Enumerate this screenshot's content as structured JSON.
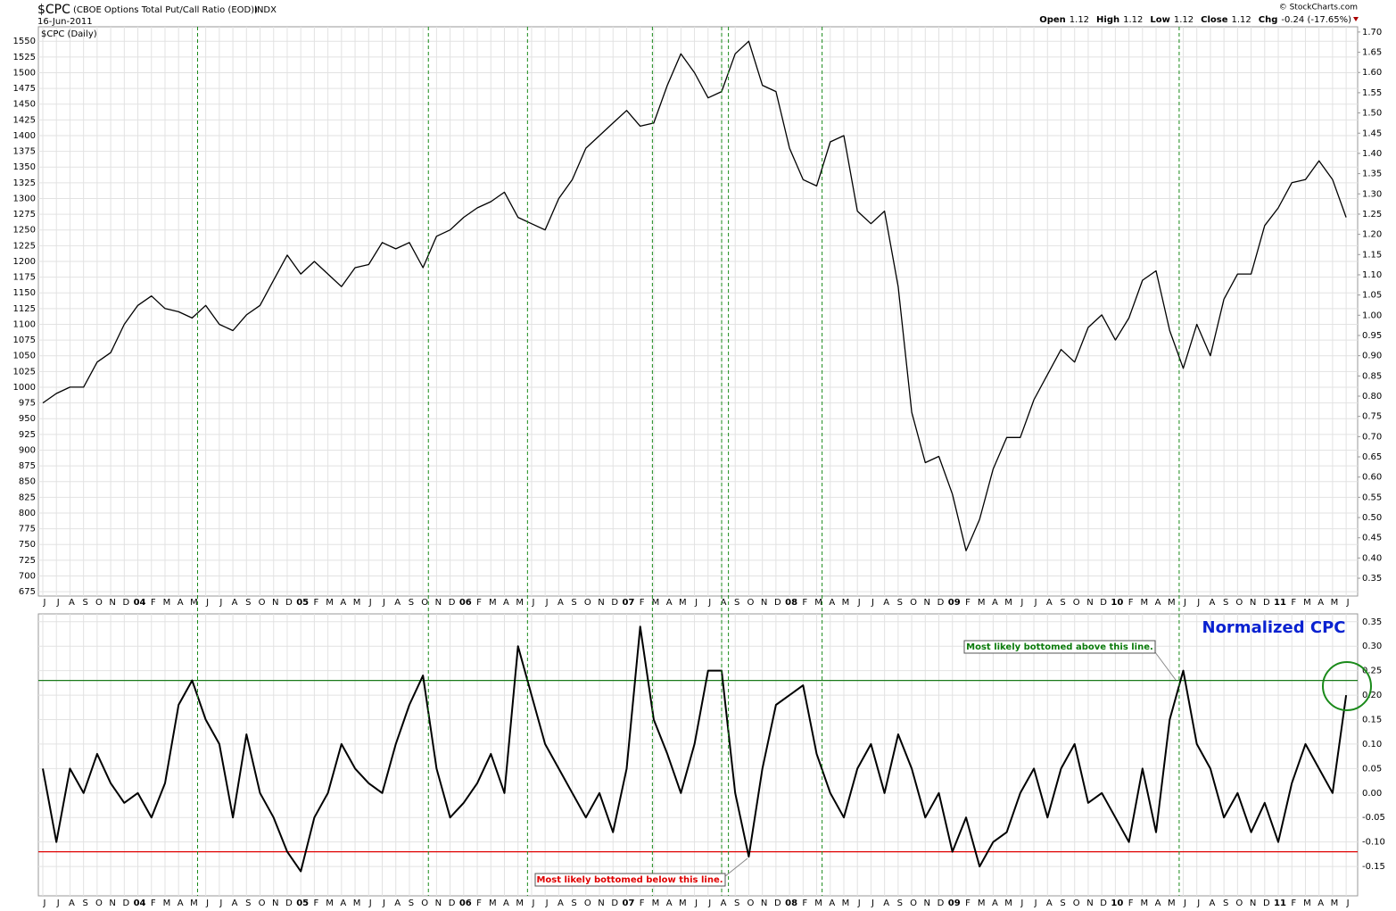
{
  "header": {
    "symbol": "$CPC",
    "description": "(CBOE Options Total Put/Call Ratio (EOD))",
    "exchange": "INDX",
    "date": "16-Jun-2011",
    "copyright": "© StockCharts.com",
    "open_label": "Open",
    "open": "1.12",
    "high_label": "High",
    "high": "1.12",
    "low_label": "Low",
    "low": "1.12",
    "close_label": "Close",
    "close": "1.12",
    "chg_label": "Chg",
    "chg": "-0.24 (-17.65%)"
  },
  "chart_data": [
    {
      "type": "line",
      "label": "$CPC (Daily)",
      "color": "#000000",
      "categories": [
        "J",
        "J",
        "A",
        "S",
        "O",
        "N",
        "D",
        "04",
        "F",
        "M",
        "A",
        "M",
        "J",
        "J",
        "A",
        "S",
        "O",
        "N",
        "D",
        "05",
        "F",
        "M",
        "A",
        "M",
        "J",
        "J",
        "A",
        "S",
        "O",
        "N",
        "D",
        "06",
        "F",
        "M",
        "A",
        "M",
        "J",
        "J",
        "A",
        "S",
        "O",
        "N",
        "D",
        "07",
        "F",
        "M",
        "A",
        "M",
        "J",
        "J",
        "A",
        "S",
        "O",
        "N",
        "D",
        "08",
        "F",
        "M",
        "A",
        "M",
        "J",
        "J",
        "A",
        "S",
        "O",
        "N",
        "D",
        "09",
        "F",
        "M",
        "A",
        "M",
        "J",
        "J",
        "A",
        "S",
        "O",
        "N",
        "D",
        "10",
        "F",
        "M",
        "A",
        "M",
        "J",
        "J",
        "A",
        "S",
        "O",
        "N",
        "D",
        "11",
        "F",
        "M",
        "A",
        "M",
        "J"
      ],
      "values": [
        975,
        990,
        1000,
        1000,
        1040,
        1055,
        1100,
        1130,
        1145,
        1125,
        1120,
        1110,
        1130,
        1100,
        1090,
        1115,
        1130,
        1170,
        1210,
        1180,
        1200,
        1180,
        1160,
        1190,
        1195,
        1230,
        1220,
        1230,
        1190,
        1240,
        1250,
        1270,
        1285,
        1295,
        1310,
        1270,
        1260,
        1250,
        1300,
        1330,
        1380,
        1400,
        1420,
        1440,
        1415,
        1420,
        1480,
        1530,
        1500,
        1460,
        1470,
        1530,
        1550,
        1480,
        1470,
        1380,
        1330,
        1320,
        1390,
        1400,
        1280,
        1260,
        1280,
        1160,
        960,
        880,
        890,
        830,
        740,
        790,
        870,
        920,
        920,
        980,
        1020,
        1060,
        1040,
        1095,
        1115,
        1075,
        1110,
        1170,
        1185,
        1090,
        1030,
        1100,
        1050,
        1140,
        1180,
        1180,
        1257,
        1285,
        1325,
        1330,
        1360,
        1330,
        1270
      ],
      "ylim": [
        668,
        1573
      ],
      "yticks": [
        1550,
        1525,
        1500,
        1475,
        1450,
        1425,
        1400,
        1375,
        1350,
        1325,
        1300,
        1275,
        1250,
        1225,
        1200,
        1175,
        1150,
        1125,
        1100,
        1075,
        1050,
        1025,
        1000,
        975,
        950,
        925,
        900,
        875,
        850,
        825,
        800,
        775,
        750,
        725,
        700,
        675
      ],
      "y2lim": [
        0.306,
        1.713
      ],
      "y2ticks": [
        {
          "value": 1.7,
          "label": "1.70"
        },
        1.65,
        {
          "value": 1.6,
          "label": "1.60"
        },
        1.55,
        {
          "value": 1.5,
          "label": "1.50"
        },
        1.45,
        {
          "value": 1.4,
          "label": "1.40"
        },
        1.35,
        {
          "value": 1.3,
          "label": "1.30"
        },
        1.25,
        {
          "value": 1.2,
          "label": "1.20"
        },
        1.15,
        {
          "value": 1.1,
          "label": "1.10"
        },
        1.05,
        {
          "value": 1,
          "label": "1.00"
        },
        0.95,
        {
          "value": 0.9,
          "label": "0.90"
        },
        0.85,
        {
          "value": 0.8,
          "label": "0.80"
        },
        0.75,
        {
          "value": 0.7,
          "label": "0.70"
        },
        0.65,
        {
          "value": 0.6,
          "label": "0.60"
        },
        0.55,
        {
          "value": 0.5,
          "label": "0.50"
        },
        0.45,
        {
          "value": 0.4,
          "label": "0.40"
        },
        0.35
      ],
      "grid": true,
      "vlines": [
        11.4,
        28.4,
        35.7,
        44.9,
        50.0,
        50.5,
        57.4,
        83.7
      ],
      "vline_color": "#1a8a1a"
    },
    {
      "type": "line",
      "title": "Normalized CPC",
      "color": "#000000",
      "categories": [
        "J",
        "J",
        "A",
        "S",
        "O",
        "N",
        "D",
        "04",
        "F",
        "M",
        "A",
        "M",
        "J",
        "J",
        "A",
        "S",
        "O",
        "N",
        "D",
        "05",
        "F",
        "M",
        "A",
        "M",
        "J",
        "J",
        "A",
        "S",
        "O",
        "N",
        "D",
        "06",
        "F",
        "M",
        "A",
        "M",
        "J",
        "J",
        "A",
        "S",
        "O",
        "N",
        "D",
        "07",
        "F",
        "M",
        "A",
        "M",
        "J",
        "J",
        "A",
        "S",
        "O",
        "N",
        "D",
        "08",
        "F",
        "M",
        "A",
        "M",
        "J",
        "J",
        "A",
        "S",
        "O",
        "N",
        "D",
        "09",
        "F",
        "M",
        "A",
        "M",
        "J",
        "J",
        "A",
        "S",
        "O",
        "N",
        "D",
        "10",
        "F",
        "M",
        "A",
        "M",
        "J",
        "J",
        "A",
        "S",
        "O",
        "N",
        "D",
        "11",
        "F",
        "M",
        "A",
        "M",
        "J"
      ],
      "values": [
        0.05,
        -0.1,
        0.05,
        0,
        0.08,
        0.02,
        -0.02,
        0,
        -0.05,
        0.02,
        0.18,
        0.23,
        0.15,
        0.1,
        -0.05,
        0.12,
        0,
        -0.05,
        -0.12,
        -0.16,
        -0.05,
        0,
        0.1,
        0.05,
        0.02,
        0,
        0.1,
        0.18,
        0.24,
        0.05,
        -0.05,
        -0.02,
        0.02,
        0.08,
        0,
        0.3,
        0.2,
        0.1,
        0.05,
        0,
        -0.05,
        0,
        -0.08,
        0.05,
        0.34,
        0.15,
        0.08,
        0,
        0.1,
        0.25,
        0.25,
        0,
        -0.13,
        0.05,
        0.18,
        0.2,
        0.22,
        0.08,
        0,
        -0.05,
        0.05,
        0.1,
        0,
        0.12,
        0.05,
        -0.05,
        0,
        -0.12,
        -0.05,
        -0.15,
        -0.1,
        -0.08,
        0,
        0.05,
        -0.05,
        0.05,
        0.1,
        -0.02,
        0,
        -0.05,
        -0.1,
        0.05,
        -0.08,
        0.15,
        0.25,
        0.1,
        0.05,
        -0.05,
        0,
        -0.08,
        -0.02,
        -0.1,
        0.02,
        0.1,
        0.05,
        0,
        0.2
      ],
      "ylim": [
        -0.21,
        0.366
      ],
      "yticks": [
        0.35,
        {
          "value": 0.3,
          "label": "0.30"
        },
        0.25,
        {
          "value": 0.2,
          "label": "0.20"
        },
        0.15,
        {
          "value": 0.1,
          "label": "0.10"
        },
        0.05,
        {
          "value": 0,
          "label": "0.00"
        },
        -0.05,
        {
          "value": -0.1,
          "label": "-0.10"
        },
        -0.15
      ],
      "grid": true,
      "hlines": [
        {
          "value": 0.23,
          "color": "#1a7a1a",
          "annotation": "Most likely bottomed above this line."
        },
        {
          "value": -0.12,
          "color": "#e00000",
          "annotation": "Most likely bottomed below this line."
        }
      ]
    }
  ]
}
